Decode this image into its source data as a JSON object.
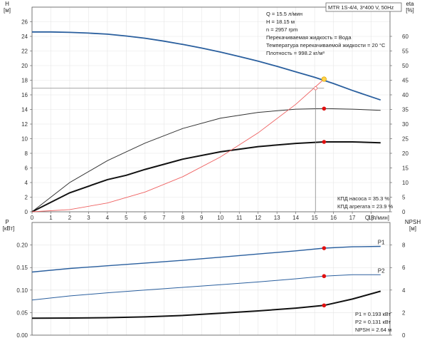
{
  "title_box": "MTR 1S-4/4, 3*400 V, 50Hz",
  "info": {
    "lines": [
      "Q = 15.5 л/мин",
      "H = 18.15 м",
      "n = 2957 rpm",
      "Перекачиваемая жидкость = Вода",
      "Температура перекачиваемой жидкости = 20 °C",
      "Плотность = 998.2 кг/м³"
    ]
  },
  "eff_note": {
    "pump": "КПД насоса = 35.3 %",
    "unit": "КПД агрегата = 23.9 %"
  },
  "power_note": {
    "p1": "P1 = 0.193 кВт",
    "p2": "P2 = 0.131 кВт",
    "npsh": "NPSH = 2.64 м"
  },
  "chart_data": [
    {
      "type": "line",
      "name": "upper",
      "xlabel": "Q [л/мин]",
      "ylabel_left": "H [м]",
      "ylabel_right": "eta [%]",
      "xlim": [
        0,
        19
      ],
      "ylim_left": [
        0,
        28
      ],
      "ylim_right": [
        0,
        70
      ],
      "x_ticks": [
        0,
        1,
        2,
        3,
        4,
        5,
        6,
        7,
        8,
        9,
        10,
        11,
        12,
        13,
        14,
        15,
        16,
        17,
        18
      ],
      "y_ticks_left": [
        0,
        2,
        4,
        6,
        8,
        10,
        12,
        14,
        16,
        18,
        20,
        22,
        24,
        26
      ],
      "y_ticks_right": [
        0,
        5,
        10,
        15,
        20,
        25,
        30,
        35,
        40,
        45,
        50,
        55,
        60
      ],
      "operating_point": {
        "q": 15.5,
        "h": 18.15,
        "eta_pump": 35.3,
        "eta_unit": 23.9
      },
      "series": [
        {
          "id": "head",
          "color": "#2a5f9e",
          "axis": "left",
          "x": [
            0,
            1,
            2,
            3,
            4,
            5,
            6,
            7,
            8,
            9,
            10,
            11,
            12,
            13,
            14,
            15,
            16,
            17,
            18.5
          ],
          "y": [
            24.6,
            24.6,
            24.55,
            24.45,
            24.3,
            24.05,
            23.75,
            23.35,
            22.9,
            22.4,
            21.85,
            21.25,
            20.6,
            19.9,
            19.15,
            18.4,
            17.55,
            16.6,
            15.3
          ]
        },
        {
          "id": "eta_pump",
          "color": "#333333",
          "axis": "right",
          "x": [
            0,
            2,
            4,
            5,
            6,
            8,
            10,
            12,
            14,
            15.5,
            17,
            18.5
          ],
          "y": [
            0,
            10,
            17.5,
            20.5,
            23.5,
            28.5,
            32,
            34,
            35.1,
            35.3,
            35.1,
            34.7
          ]
        },
        {
          "id": "eta_unit",
          "color": "#111111",
          "axis": "right",
          "x": [
            0,
            2,
            4,
            5,
            6,
            8,
            10,
            12,
            14,
            15.5,
            17,
            18.5
          ],
          "y": [
            0,
            6.5,
            11,
            12.5,
            14.5,
            18,
            20.5,
            22.3,
            23.4,
            23.9,
            23.9,
            23.6
          ]
        },
        {
          "id": "system",
          "color": "#ee6060",
          "axis": "left",
          "x": [
            0,
            2,
            4,
            6,
            8,
            10,
            12,
            14,
            15.5
          ],
          "y": [
            0,
            0.3,
            1.2,
            2.7,
            4.8,
            7.5,
            10.8,
            14.7,
            18.15
          ]
        }
      ]
    },
    {
      "type": "line",
      "name": "lower",
      "ylabel_left": "P [кВт]",
      "ylabel_right": "NPSH [м]",
      "xlim": [
        0,
        19
      ],
      "ylim_left": [
        0,
        0.25
      ],
      "ylim_right": [
        0,
        10
      ],
      "y_ticks_left": [
        0.0,
        0.05,
        0.1,
        0.15,
        0.2
      ],
      "y_ticks_left_labels": [
        "0.00",
        "0.05",
        "0.10",
        "0.15",
        "0.20"
      ],
      "y_ticks_right": [
        0,
        2,
        4,
        6,
        8
      ],
      "series": [
        {
          "id": "P1",
          "name": "P1",
          "color": "#2a5f9e",
          "axis": "left",
          "x": [
            0,
            2,
            4,
            6,
            8,
            10,
            12,
            14,
            15.5,
            17,
            18.5
          ],
          "y": [
            0.14,
            0.148,
            0.154,
            0.16,
            0.166,
            0.173,
            0.18,
            0.187,
            0.193,
            0.196,
            0.197
          ]
        },
        {
          "id": "P2",
          "name": "P2",
          "color": "#2a5f9e",
          "axis": "left",
          "x": [
            0,
            2,
            4,
            6,
            8,
            10,
            12,
            14,
            15.5,
            17,
            18.5
          ],
          "y": [
            0.078,
            0.087,
            0.094,
            0.1,
            0.106,
            0.112,
            0.118,
            0.125,
            0.131,
            0.134,
            0.134
          ]
        },
        {
          "id": "NPSH",
          "color": "#111111",
          "axis": "right",
          "x": [
            0,
            2,
            4,
            6,
            8,
            10,
            12,
            14,
            15.5,
            17,
            18.5
          ],
          "y": [
            1.5,
            1.52,
            1.55,
            1.62,
            1.75,
            1.95,
            2.15,
            2.4,
            2.64,
            3.2,
            3.9
          ]
        }
      ]
    }
  ]
}
